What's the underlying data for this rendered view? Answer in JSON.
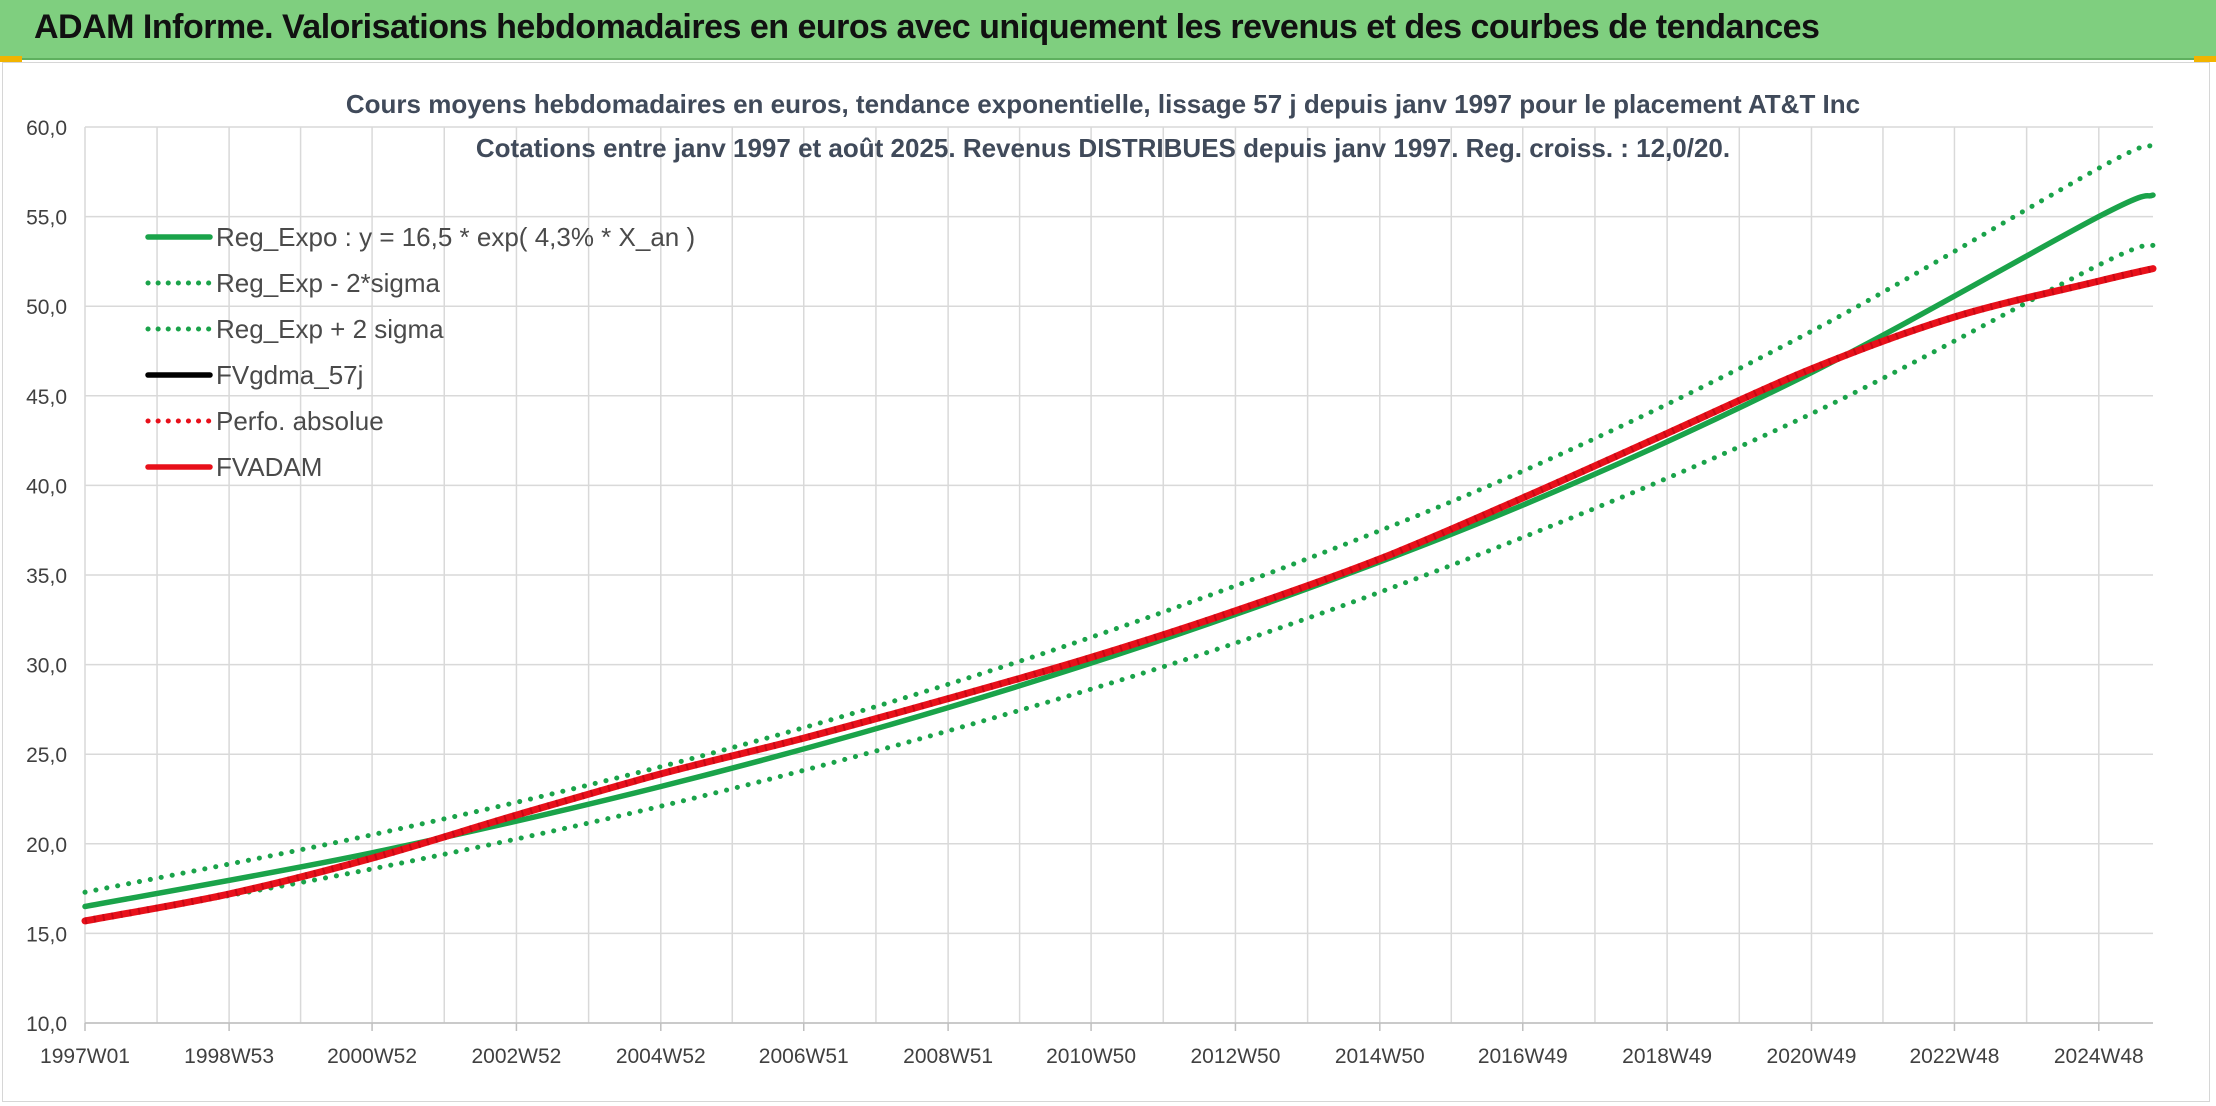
{
  "header": {
    "title": "ADAM Informe. Valorisations hebdomadaires en euros avec uniquement les revenus et des courbes de tendances"
  },
  "colors": {
    "header_bg": "#7fcf7f",
    "green": "#1aa34a",
    "red": "#e8101a",
    "black": "#000000",
    "grid": "#d9d9d9"
  },
  "chart_data": {
    "type": "line",
    "title": "Cours moyens hebdomadaires en euros, tendance exponentielle, lissage 57 j depuis janv 1997 pour le placement AT&T Inc",
    "subtitle": "Cotations entre janv 1997 et août 2025. Revenus DISTRIBUES depuis janv 1997. Reg. croiss. : 12,0/20.",
    "xlabel": "",
    "ylabel": "",
    "x_tick_labels": [
      "1997W01",
      "1998W53",
      "2000W52",
      "2002W52",
      "2004W52",
      "2006W51",
      "2008W51",
      "2010W50",
      "2012W50",
      "2014W50",
      "2016W49",
      "2018W49",
      "2020W49",
      "2022W48",
      "2024W48"
    ],
    "x_range": [
      "1997W01",
      "2025W35"
    ],
    "y_tick_labels": [
      "10,0",
      "15,0",
      "20,0",
      "25,0",
      "30,0",
      "35,0",
      "40,0",
      "45,0",
      "50,0",
      "55,0",
      "60,0"
    ],
    "ylim": [
      10,
      60
    ],
    "grid": true,
    "legend_position": "top-left",
    "series": [
      {
        "name": "Reg_Expo : y = 16,5 * exp( 4,3% *  X_an )",
        "style": "solid",
        "color": "#1aa34a",
        "x": [
          "1997W01",
          "2000W52",
          "2004W52",
          "2008W51",
          "2012W50",
          "2016W49",
          "2020W49",
          "2024W48",
          "2025W35"
        ],
        "values": [
          16.5,
          19.5,
          23.2,
          27.6,
          32.8,
          38.9,
          46.3,
          55.0,
          56.2
        ]
      },
      {
        "name": "Reg_Exp - 2*sigma",
        "style": "dotted",
        "color": "#1aa34a",
        "x": [
          "1997W01",
          "2000W52",
          "2004W52",
          "2008W51",
          "2012W50",
          "2016W49",
          "2020W49",
          "2024W48",
          "2025W35"
        ],
        "values": [
          15.7,
          18.6,
          22.1,
          26.3,
          31.2,
          37.1,
          44.0,
          52.3,
          53.4
        ]
      },
      {
        "name": "Reg_Exp + 2 sigma",
        "style": "dotted",
        "color": "#1aa34a",
        "x": [
          "1997W01",
          "2000W52",
          "2004W52",
          "2008W51",
          "2012W50",
          "2016W49",
          "2020W49",
          "2024W48",
          "2025W35"
        ],
        "values": [
          17.3,
          20.5,
          24.3,
          28.9,
          34.4,
          40.8,
          48.6,
          57.7,
          59.0
        ]
      },
      {
        "name": "FVgdma_57j",
        "style": "solid",
        "color": "#000000",
        "x": [],
        "values": []
      },
      {
        "name": "Perfo. absolue",
        "style": "dotted",
        "color": "#e8101a",
        "x": [],
        "values": []
      },
      {
        "name": "FVADAM",
        "style": "solid",
        "color": "#e8101a",
        "x": [
          "1997W01",
          "1998W53",
          "2000W52",
          "2002W52",
          "2004W52",
          "2006W51",
          "2008W51",
          "2010W50",
          "2012W50",
          "2014W50",
          "2016W49",
          "2018W49",
          "2020W49",
          "2022W48",
          "2024W48",
          "2025W35"
        ],
        "values": [
          15.7,
          17.2,
          19.2,
          21.6,
          23.9,
          25.9,
          28.1,
          30.4,
          33.0,
          35.9,
          39.3,
          42.9,
          46.5,
          49.4,
          51.4,
          52.1
        ]
      }
    ]
  }
}
